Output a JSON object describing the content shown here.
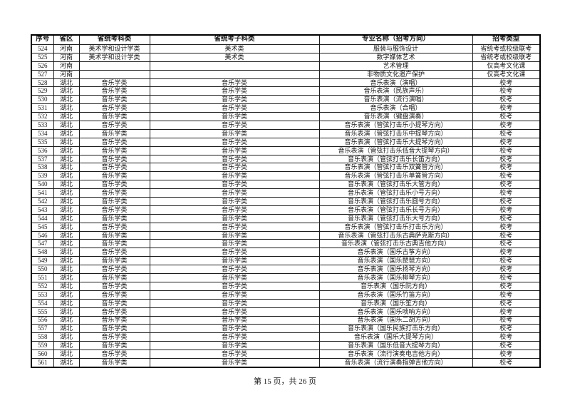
{
  "table": {
    "column_keys": [
      "index",
      "province",
      "exam-category",
      "exam-subcategory",
      "major-name",
      "exam-type"
    ],
    "headers": [
      "序号",
      "省区",
      "省统考科类",
      "省统考子科类",
      "专业名称（招考方向）",
      "招考类型"
    ],
    "rows": [
      [
        "524",
        "河南",
        "美术学和设计学类",
        "美术类",
        "服装与服饰设计",
        "省统考或校级联考"
      ],
      [
        "525",
        "河南",
        "美术学和设计学类",
        "美术类",
        "数字媒体艺术",
        "省统考或校级联考"
      ],
      [
        "526",
        "河南",
        "",
        "",
        "艺术管理",
        "仅高考文化课"
      ],
      [
        "527",
        "河南",
        "",
        "",
        "非物质文化遗产保护",
        "仅高考文化课"
      ],
      [
        "528",
        "湖北",
        "音乐学类",
        "音乐学类",
        "音乐表演（演唱）",
        "校考"
      ],
      [
        "529",
        "湖北",
        "音乐学类",
        "音乐学类",
        "音乐表演（民族声乐）",
        "校考"
      ],
      [
        "530",
        "湖北",
        "音乐学类",
        "音乐学类",
        "音乐表演（流行演唱）",
        "校考"
      ],
      [
        "531",
        "湖北",
        "音乐学类",
        "音乐学类",
        "音乐表演（合唱）",
        "校考"
      ],
      [
        "532",
        "湖北",
        "音乐学类",
        "音乐学类",
        "音乐表演（键盘演奏）",
        "校考"
      ],
      [
        "533",
        "湖北",
        "音乐学类",
        "音乐学类",
        "音乐表演（管弦打击乐小提琴方向）",
        "校考"
      ],
      [
        "534",
        "湖北",
        "音乐学类",
        "音乐学类",
        "音乐表演（管弦打击乐中提琴方向）",
        "校考"
      ],
      [
        "535",
        "湖北",
        "音乐学类",
        "音乐学类",
        "音乐表演（管弦打击乐大提琴方向）",
        "校考"
      ],
      [
        "536",
        "湖北",
        "音乐学类",
        "音乐学类",
        "音乐表演（管弦打击乐低音大提琴方向）",
        "校考"
      ],
      [
        "537",
        "湖北",
        "音乐学类",
        "音乐学类",
        "音乐表演（管弦打击乐长笛方向）",
        "校考"
      ],
      [
        "538",
        "湖北",
        "音乐学类",
        "音乐学类",
        "音乐表演（管弦打击乐双簧管方向）",
        "校考"
      ],
      [
        "539",
        "湖北",
        "音乐学类",
        "音乐学类",
        "音乐表演（管弦打击乐单簧管方向）",
        "校考"
      ],
      [
        "540",
        "湖北",
        "音乐学类",
        "音乐学类",
        "音乐表演（管弦打击乐大管方向）",
        "校考"
      ],
      [
        "541",
        "湖北",
        "音乐学类",
        "音乐学类",
        "音乐表演（管弦打击乐小号方向）",
        "校考"
      ],
      [
        "542",
        "湖北",
        "音乐学类",
        "音乐学类",
        "音乐表演（管弦打击乐圆号方向）",
        "校考"
      ],
      [
        "543",
        "湖北",
        "音乐学类",
        "音乐学类",
        "音乐表演（管弦打击乐长号方向）",
        "校考"
      ],
      [
        "544",
        "湖北",
        "音乐学类",
        "音乐学类",
        "音乐表演（管弦打击乐大号方向）",
        "校考"
      ],
      [
        "545",
        "湖北",
        "音乐学类",
        "音乐学类",
        "音乐表演（管弦打击乐打击乐方向）",
        "校考"
      ],
      [
        "546",
        "湖北",
        "音乐学类",
        "音乐学类",
        "音乐表演（管弦打击乐古典萨克斯方向）",
        "校考"
      ],
      [
        "547",
        "湖北",
        "音乐学类",
        "音乐学类",
        "音乐表演（管弦打击乐古典吉他方向）",
        "校考"
      ],
      [
        "548",
        "湖北",
        "音乐学类",
        "音乐学类",
        "音乐表演（国乐古筝方向）",
        "校考"
      ],
      [
        "549",
        "湖北",
        "音乐学类",
        "音乐学类",
        "音乐表演（国乐琵琶方向）",
        "校考"
      ],
      [
        "550",
        "湖北",
        "音乐学类",
        "音乐学类",
        "音乐表演（国乐扬琴方向）",
        "校考"
      ],
      [
        "551",
        "湖北",
        "音乐学类",
        "音乐学类",
        "音乐表演（国乐柳琴方向）",
        "校考"
      ],
      [
        "552",
        "湖北",
        "音乐学类",
        "音乐学类",
        "音乐表演（国乐阮方向）",
        "校考"
      ],
      [
        "553",
        "湖北",
        "音乐学类",
        "音乐学类",
        "音乐表演（国乐竹笛方向）",
        "校考"
      ],
      [
        "554",
        "湖北",
        "音乐学类",
        "音乐学类",
        "音乐表演（国乐笙方向）",
        "校考"
      ],
      [
        "555",
        "湖北",
        "音乐学类",
        "音乐学类",
        "音乐表演（国乐唢呐方向）",
        "校考"
      ],
      [
        "556",
        "湖北",
        "音乐学类",
        "音乐学类",
        "音乐表演（国乐二胡方向）",
        "校考"
      ],
      [
        "557",
        "湖北",
        "音乐学类",
        "音乐学类",
        "音乐表演（国乐民族打击乐方向）",
        "校考"
      ],
      [
        "558",
        "湖北",
        "音乐学类",
        "音乐学类",
        "音乐表演（国乐大提琴方向）",
        "校考"
      ],
      [
        "559",
        "湖北",
        "音乐学类",
        "音乐学类",
        "音乐表演（国乐低音大提琴方向）",
        "校考"
      ],
      [
        "560",
        "湖北",
        "音乐学类",
        "音乐学类",
        "音乐表演（流行演奏电吉他方向）",
        "校考"
      ],
      [
        "561",
        "湖北",
        "音乐学类",
        "音乐学类",
        "音乐表演（流行演奏指弹吉他方向）",
        "校考"
      ]
    ]
  },
  "footer": {
    "page_info": "第 15 页，共 26 页"
  },
  "colors": {
    "page_background": "#ffffff",
    "border": "#1c1c1c",
    "text": "#1a1a1a"
  }
}
